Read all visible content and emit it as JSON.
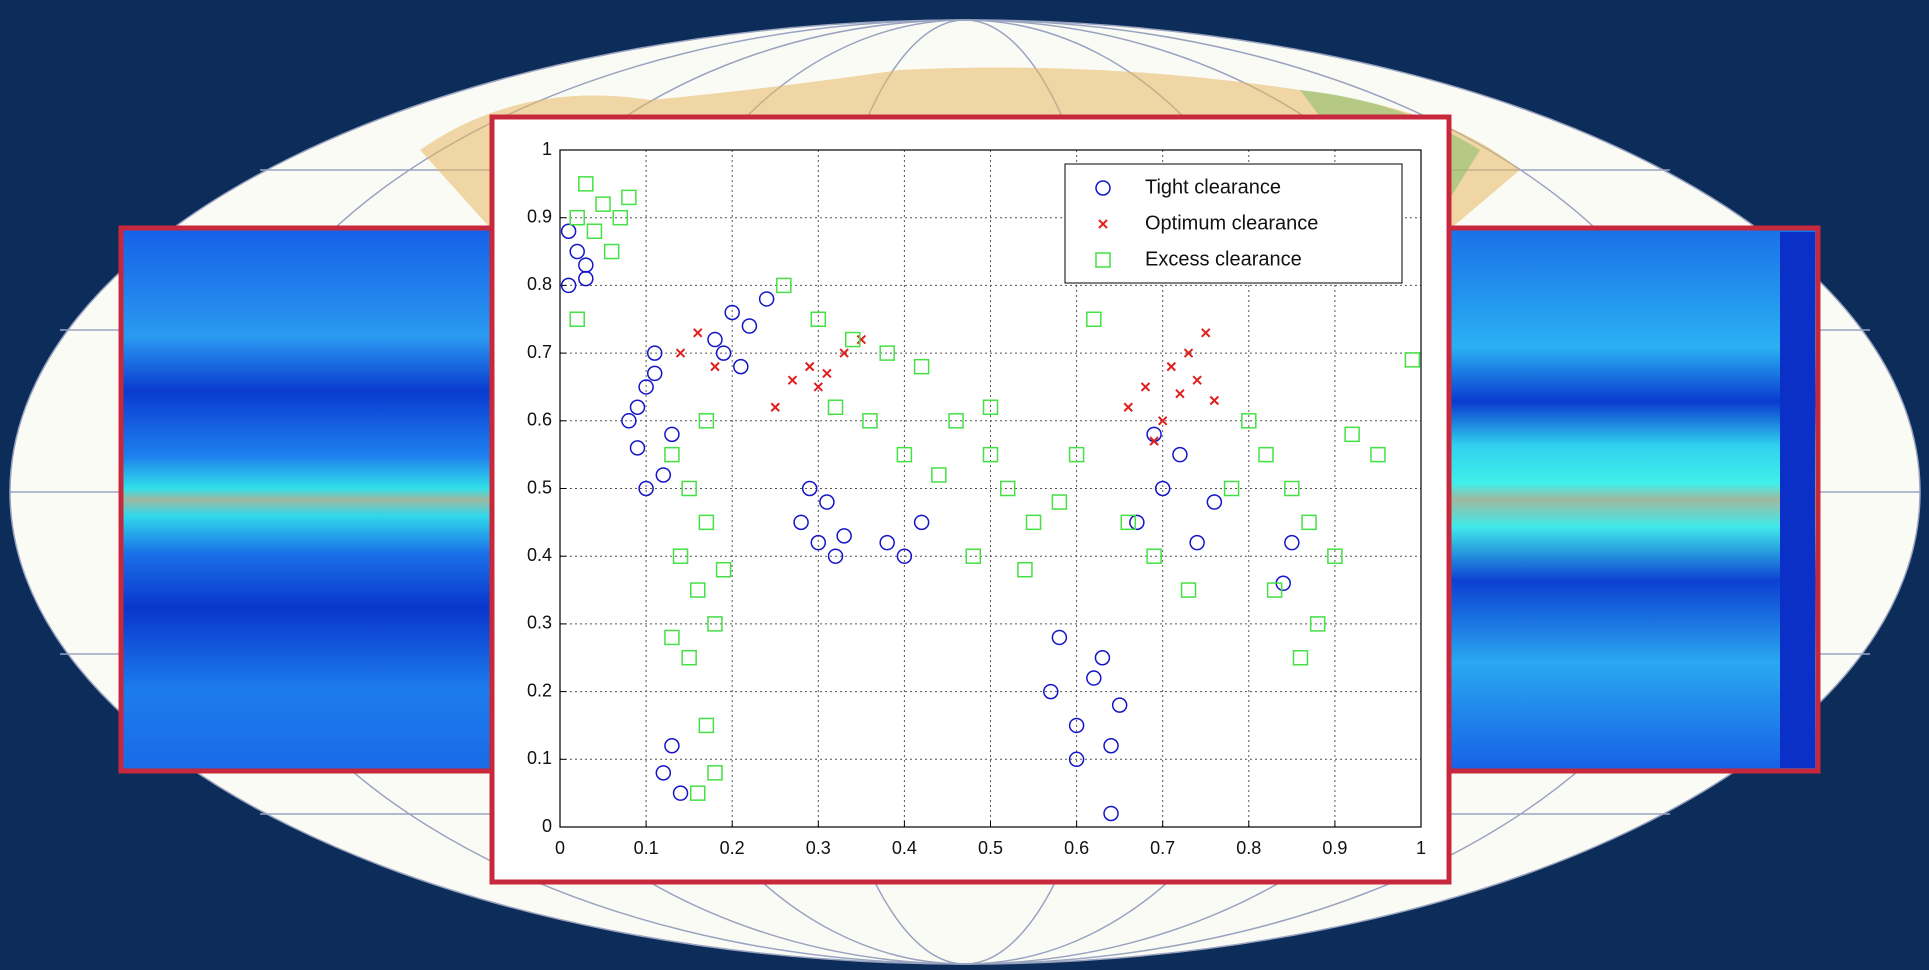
{
  "chart_data": {
    "type": "scatter",
    "xlim": [
      0,
      1
    ],
    "ylim": [
      0,
      1
    ],
    "xticks": [
      0,
      0.1,
      0.2,
      0.3,
      0.4,
      0.5,
      0.6,
      0.7,
      0.8,
      0.9,
      1
    ],
    "yticks": [
      0,
      0.1,
      0.2,
      0.3,
      0.4,
      0.5,
      0.6,
      0.7,
      0.8,
      0.9,
      1
    ],
    "grid": true,
    "legend": "upper right",
    "series": [
      {
        "name": "Tight clearance",
        "color": "#1414c8",
        "marker": "circle",
        "x": [
          0.01,
          0.02,
          0.03,
          0.01,
          0.03,
          0.08,
          0.09,
          0.1,
          0.11,
          0.12,
          0.1,
          0.09,
          0.13,
          0.11,
          0.18,
          0.2,
          0.22,
          0.21,
          0.19,
          0.24,
          0.28,
          0.3,
          0.31,
          0.32,
          0.29,
          0.33,
          0.38,
          0.4,
          0.42,
          0.57,
          0.6,
          0.62,
          0.63,
          0.6,
          0.65,
          0.58,
          0.64,
          0.67,
          0.7,
          0.72,
          0.74,
          0.69,
          0.76,
          0.85,
          0.84,
          0.12,
          0.14,
          0.13,
          0.64
        ],
        "values": [
          0.8,
          0.85,
          0.83,
          0.88,
          0.81,
          0.6,
          0.56,
          0.65,
          0.7,
          0.52,
          0.5,
          0.62,
          0.58,
          0.67,
          0.72,
          0.76,
          0.74,
          0.68,
          0.7,
          0.78,
          0.45,
          0.42,
          0.48,
          0.4,
          0.5,
          0.43,
          0.42,
          0.4,
          0.45,
          0.2,
          0.15,
          0.22,
          0.25,
          0.1,
          0.18,
          0.28,
          0.12,
          0.45,
          0.5,
          0.55,
          0.42,
          0.58,
          0.48,
          0.42,
          0.36,
          0.08,
          0.05,
          0.12,
          0.02
        ]
      },
      {
        "name": "Optimum clearance",
        "color": "#e02020",
        "marker": "x",
        "x": [
          0.14,
          0.16,
          0.18,
          0.25,
          0.27,
          0.29,
          0.3,
          0.31,
          0.33,
          0.35,
          0.66,
          0.68,
          0.7,
          0.71,
          0.72,
          0.73,
          0.75,
          0.69,
          0.74,
          0.76
        ],
        "values": [
          0.7,
          0.73,
          0.68,
          0.62,
          0.66,
          0.68,
          0.65,
          0.67,
          0.7,
          0.72,
          0.62,
          0.65,
          0.6,
          0.68,
          0.64,
          0.7,
          0.73,
          0.57,
          0.66,
          0.63
        ]
      },
      {
        "name": "Excess clearance",
        "color": "#44e044",
        "marker": "square",
        "x": [
          0.02,
          0.03,
          0.04,
          0.05,
          0.06,
          0.07,
          0.08,
          0.02,
          0.13,
          0.15,
          0.17,
          0.14,
          0.16,
          0.18,
          0.15,
          0.17,
          0.19,
          0.13,
          0.26,
          0.3,
          0.34,
          0.38,
          0.42,
          0.36,
          0.32,
          0.4,
          0.44,
          0.46,
          0.5,
          0.52,
          0.55,
          0.58,
          0.48,
          0.54,
          0.6,
          0.5,
          0.8,
          0.82,
          0.85,
          0.87,
          0.9,
          0.83,
          0.88,
          0.92,
          0.86,
          0.95,
          0.99,
          0.17,
          0.18,
          0.16,
          0.66,
          0.69,
          0.73,
          0.78,
          0.62
        ],
        "values": [
          0.9,
          0.95,
          0.88,
          0.92,
          0.85,
          0.9,
          0.93,
          0.75,
          0.55,
          0.5,
          0.45,
          0.4,
          0.35,
          0.3,
          0.25,
          0.6,
          0.38,
          0.28,
          0.8,
          0.75,
          0.72,
          0.7,
          0.68,
          0.6,
          0.62,
          0.55,
          0.52,
          0.6,
          0.55,
          0.5,
          0.45,
          0.48,
          0.4,
          0.38,
          0.55,
          0.62,
          0.6,
          0.55,
          0.5,
          0.45,
          0.4,
          0.35,
          0.3,
          0.58,
          0.25,
          0.55,
          0.69,
          0.15,
          0.08,
          0.05,
          0.45,
          0.4,
          0.35,
          0.5,
          0.75
        ]
      }
    ]
  }
}
